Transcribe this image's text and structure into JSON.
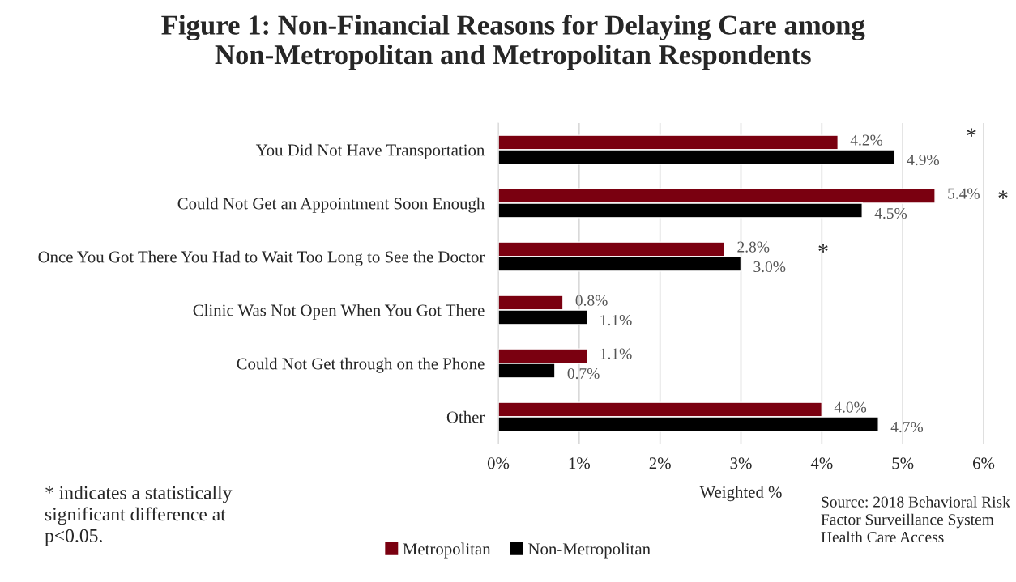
{
  "chart_data": {
    "type": "bar",
    "orientation": "horizontal",
    "title": "Figure 1: Non-Financial Reasons for Delaying Care among Non-Metropolitan and Metropolitan Respondents",
    "xlabel": "Weighted %",
    "categories": [
      "You Did Not Have Transportation",
      "Could Not Get an Appointment Soon Enough",
      "Once You Got There You Had to Wait Too Long to See the Doctor",
      "Clinic Was Not Open When You Got There",
      "Could Not Get through on the Phone",
      "Other"
    ],
    "series": [
      {
        "name": "Metropolitan",
        "color": "#7a0010",
        "values": [
          4.2,
          5.4,
          2.8,
          0.8,
          1.1,
          4.0
        ],
        "value_labels": [
          "4.2%",
          "5.4%",
          "2.8%",
          "0.8%",
          "1.1%",
          "4.0%"
        ]
      },
      {
        "name": "Non-Metropolitan",
        "color": "#000000",
        "values": [
          4.9,
          4.5,
          3.0,
          1.1,
          0.7,
          4.7
        ],
        "value_labels": [
          "4.9%",
          "4.5%",
          "3.0%",
          "1.1%",
          "0.7%",
          "4.7%"
        ]
      }
    ],
    "xlim": [
      0,
      6
    ],
    "xticks": [
      {
        "value": 0,
        "label": "0%"
      },
      {
        "value": 1,
        "label": "1%"
      },
      {
        "value": 2,
        "label": "2%"
      },
      {
        "value": 3,
        "label": "3%"
      },
      {
        "value": 4,
        "label": "4%"
      },
      {
        "value": 5,
        "label": "5%"
      },
      {
        "value": 6,
        "label": "6%"
      }
    ],
    "grid": "x",
    "legend": "bottom",
    "annotations": [
      "*",
      "*",
      "*",
      "* indicates a statistically significant difference at p<0.05.",
      "Source: 2018 Behavioral Risk Factor Surveillance System Health Care Access"
    ]
  }
}
